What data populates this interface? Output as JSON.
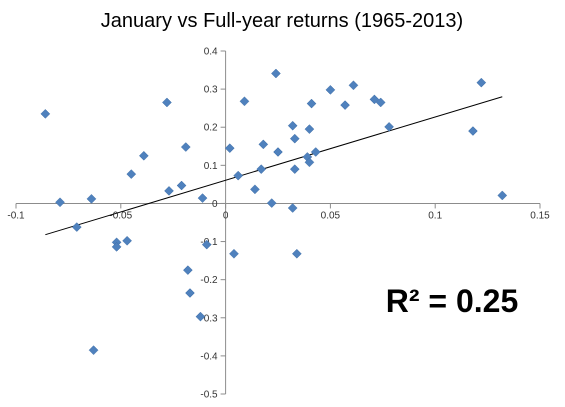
{
  "chart_data": {
    "type": "scatter",
    "title": "January vs Full-year returns (1965-2013)",
    "xlabel": "",
    "ylabel": "",
    "xlim": [
      -0.1,
      0.15
    ],
    "ylim": [
      -0.5,
      0.4
    ],
    "x_ticks": [
      -0.1,
      -0.05,
      0,
      0.05,
      0.1,
      0.15
    ],
    "x_tick_labels": [
      "-0.1",
      "-0.05",
      "0",
      "0.05",
      "0.1",
      "0.15"
    ],
    "y_ticks": [
      0.4,
      0.3,
      0.2,
      0.1,
      0,
      -0.1,
      -0.2,
      -0.3,
      -0.4,
      -0.5
    ],
    "y_tick_labels": [
      "0.4",
      "0.3",
      "0.2",
      "0.1",
      "0",
      "-0.1",
      "-0.2",
      "-0.3",
      "-0.4",
      "-0.5"
    ],
    "grid": false,
    "legend": "none",
    "marker": "diamond",
    "marker_color": "#4F81BD",
    "trendline": {
      "type": "linear",
      "x": [
        -0.086,
        0.132
      ],
      "y": [
        -0.082,
        0.28
      ],
      "color": "#000000"
    },
    "annotation": "R² = 0.25",
    "points": [
      {
        "x": -0.086,
        "y": 0.235
      },
      {
        "x": -0.079,
        "y": 0.003
      },
      {
        "x": -0.071,
        "y": -0.062
      },
      {
        "x": -0.064,
        "y": 0.012
      },
      {
        "x": -0.063,
        "y": -0.385
      },
      {
        "x": -0.052,
        "y": -0.102
      },
      {
        "x": -0.052,
        "y": -0.114
      },
      {
        "x": -0.047,
        "y": -0.098
      },
      {
        "x": -0.045,
        "y": 0.077
      },
      {
        "x": -0.039,
        "y": 0.125
      },
      {
        "x": -0.028,
        "y": 0.265
      },
      {
        "x": -0.027,
        "y": 0.033
      },
      {
        "x": -0.021,
        "y": 0.047
      },
      {
        "x": -0.019,
        "y": 0.148
      },
      {
        "x": -0.018,
        "y": -0.175
      },
      {
        "x": -0.017,
        "y": -0.235
      },
      {
        "x": -0.011,
        "y": 0.014
      },
      {
        "x": -0.009,
        "y": -0.108
      },
      {
        "x": -0.012,
        "y": -0.297
      },
      {
        "x": 0.002,
        "y": 0.145
      },
      {
        "x": 0.004,
        "y": -0.132
      },
      {
        "x": 0.006,
        "y": 0.073
      },
      {
        "x": 0.009,
        "y": 0.268
      },
      {
        "x": 0.014,
        "y": 0.037
      },
      {
        "x": 0.017,
        "y": 0.09
      },
      {
        "x": 0.018,
        "y": 0.155
      },
      {
        "x": 0.022,
        "y": 0.001
      },
      {
        "x": 0.024,
        "y": 0.341
      },
      {
        "x": 0.025,
        "y": 0.135
      },
      {
        "x": 0.032,
        "y": 0.204
      },
      {
        "x": 0.033,
        "y": 0.17
      },
      {
        "x": 0.033,
        "y": 0.09
      },
      {
        "x": 0.032,
        "y": -0.012
      },
      {
        "x": 0.034,
        "y": -0.132
      },
      {
        "x": 0.039,
        "y": 0.122
      },
      {
        "x": 0.04,
        "y": 0.108
      },
      {
        "x": 0.04,
        "y": 0.195
      },
      {
        "x": 0.041,
        "y": 0.262
      },
      {
        "x": 0.043,
        "y": 0.135
      },
      {
        "x": 0.05,
        "y": 0.298
      },
      {
        "x": 0.057,
        "y": 0.258
      },
      {
        "x": 0.061,
        "y": 0.31
      },
      {
        "x": 0.071,
        "y": 0.273
      },
      {
        "x": 0.074,
        "y": 0.265
      },
      {
        "x": 0.078,
        "y": 0.201
      },
      {
        "x": 0.118,
        "y": 0.19
      },
      {
        "x": 0.122,
        "y": 0.317
      },
      {
        "x": 0.132,
        "y": 0.021
      }
    ]
  }
}
